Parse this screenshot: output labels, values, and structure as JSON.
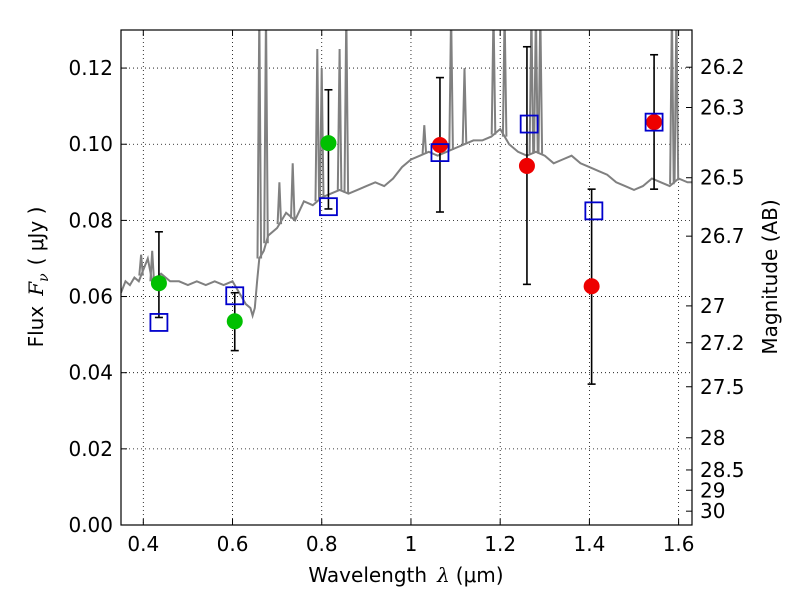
{
  "chart_data": {
    "type": "scatter",
    "xlabel": "Wavelength",
    "xlabel_symbol": "λ",
    "xlabel_unit": "(μm)",
    "ylabel": "Flux",
    "ylabel_symbol": "F",
    "ylabel_subscript": "ν",
    "ylabel_unit": "( μJy )",
    "y2label": "Magnitude (AB)",
    "xlim": [
      0.35,
      1.63
    ],
    "ylim": [
      0.0,
      0.13
    ],
    "grid": true,
    "x_ticks": [
      0.4,
      0.6,
      0.8,
      1.0,
      1.2,
      1.4,
      1.6
    ],
    "x_tick_labels": [
      "0.4",
      "0.6",
      "0.8",
      "1",
      "1.2",
      "1.4",
      "1.6"
    ],
    "y_ticks": [
      0.0,
      0.02,
      0.04,
      0.06,
      0.08,
      0.1,
      0.12
    ],
    "y_tick_labels": [
      "0.00",
      "0.02",
      "0.04",
      "0.06",
      "0.08",
      "0.10",
      "0.12"
    ],
    "mag_ticks": [
      26.2,
      26.3,
      26.5,
      26.7,
      27,
      27.2,
      27.5,
      28,
      28.5,
      29,
      30
    ],
    "mag_tick_labels": [
      "26.2",
      "26.3",
      "26.5",
      "26.7",
      "27",
      "27.2",
      "27.5",
      "28",
      "28.5",
      "29",
      "30"
    ],
    "colors": {
      "spectrum": "#808080",
      "green_points": "#00c000",
      "red_points": "#ee0000",
      "model_squares": "#0000cc",
      "errorbars": "#000000"
    },
    "series": [
      {
        "marker": "circle",
        "color": "#00c000",
        "x": [
          0.435,
          0.605,
          0.815
        ],
        "y": [
          0.0635,
          0.0535,
          0.1003
        ],
        "yerr_low": [
          0.0545,
          0.0458,
          0.083
        ],
        "yerr_high": [
          0.077,
          0.061,
          0.1143
        ]
      },
      {
        "marker": "circle",
        "color": "#ee0000",
        "x": [
          1.065,
          1.26,
          1.405,
          1.545
        ],
        "y": [
          0.0998,
          0.0943,
          0.0627,
          0.1058
        ],
        "yerr_low": [
          0.0822,
          0.0632,
          0.037,
          0.0882
        ],
        "yerr_high": [
          0.1175,
          0.1256,
          0.0882,
          0.1235
        ]
      },
      {
        "marker": "open-square",
        "color": "#0000cc",
        "x": [
          0.435,
          0.605,
          0.815,
          1.065,
          1.265,
          1.41,
          1.545
        ],
        "y": [
          0.0532,
          0.0602,
          0.0836,
          0.0978,
          0.1053,
          0.0825,
          0.1058
        ]
      }
    ],
    "spectrum": {
      "x": [
        0.35,
        0.36,
        0.37,
        0.38,
        0.39,
        0.4,
        0.41,
        0.42,
        0.43,
        0.44,
        0.45,
        0.46,
        0.48,
        0.5,
        0.52,
        0.54,
        0.56,
        0.58,
        0.6,
        0.62,
        0.63,
        0.64,
        0.645,
        0.65,
        0.655,
        0.66,
        0.67,
        0.68,
        0.7,
        0.72,
        0.74,
        0.76,
        0.78,
        0.8,
        0.82,
        0.84,
        0.86,
        0.88,
        0.9,
        0.92,
        0.94,
        0.96,
        0.98,
        1.0,
        1.02,
        1.04,
        1.06,
        1.08,
        1.1,
        1.12,
        1.14,
        1.16,
        1.18,
        1.2,
        1.22,
        1.24,
        1.26,
        1.28,
        1.3,
        1.32,
        1.34,
        1.36,
        1.38,
        1.4,
        1.42,
        1.44,
        1.46,
        1.48,
        1.5,
        1.52,
        1.54,
        1.56,
        1.58,
        1.6,
        1.62,
        1.63
      ],
      "y": [
        0.061,
        0.064,
        0.063,
        0.065,
        0.064,
        0.067,
        0.07,
        0.064,
        0.065,
        0.066,
        0.065,
        0.064,
        0.064,
        0.063,
        0.064,
        0.063,
        0.064,
        0.063,
        0.064,
        0.06,
        0.058,
        0.057,
        0.055,
        0.057,
        0.064,
        0.07,
        0.072,
        0.076,
        0.078,
        0.082,
        0.08,
        0.085,
        0.084,
        0.086,
        0.087,
        0.088,
        0.087,
        0.088,
        0.089,
        0.09,
        0.089,
        0.091,
        0.094,
        0.096,
        0.097,
        0.098,
        0.097,
        0.098,
        0.099,
        0.1,
        0.101,
        0.101,
        0.102,
        0.104,
        0.1,
        0.098,
        0.097,
        0.098,
        0.097,
        0.095,
        0.096,
        0.097,
        0.095,
        0.094,
        0.093,
        0.092,
        0.09,
        0.089,
        0.088,
        0.089,
        0.091,
        0.09,
        0.089,
        0.091,
        0.09,
        0.09
      ]
    },
    "spectrum_spikes": [
      {
        "x": 0.395,
        "y": 0.071
      },
      {
        "x": 0.42,
        "y": 0.072
      },
      {
        "x": 0.66,
        "y": 0.135
      },
      {
        "x": 0.675,
        "y": 0.135
      },
      {
        "x": 0.705,
        "y": 0.09
      },
      {
        "x": 0.735,
        "y": 0.095
      },
      {
        "x": 0.79,
        "y": 0.125
      },
      {
        "x": 0.8,
        "y": 0.12
      },
      {
        "x": 0.84,
        "y": 0.125
      },
      {
        "x": 0.855,
        "y": 0.135
      },
      {
        "x": 1.03,
        "y": 0.105
      },
      {
        "x": 1.09,
        "y": 0.135
      },
      {
        "x": 1.12,
        "y": 0.12
      },
      {
        "x": 1.185,
        "y": 0.135
      },
      {
        "x": 1.21,
        "y": 0.135
      },
      {
        "x": 1.27,
        "y": 0.135
      },
      {
        "x": 1.28,
        "y": 0.135
      },
      {
        "x": 1.29,
        "y": 0.135
      },
      {
        "x": 1.585,
        "y": 0.135
      },
      {
        "x": 1.595,
        "y": 0.135
      }
    ]
  }
}
